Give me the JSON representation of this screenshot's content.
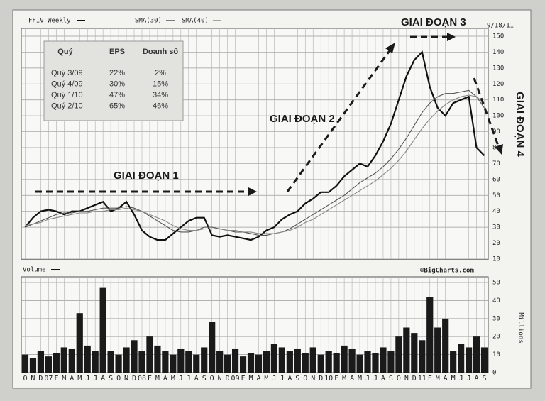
{
  "chart_data": [
    {
      "type": "line",
      "date_label": "9/18/11",
      "ylim": [
        10,
        150
      ],
      "yticks": [
        10,
        20,
        30,
        40,
        50,
        60,
        70,
        80,
        90,
        100,
        110,
        120,
        130,
        140,
        150
      ],
      "grid": true,
      "series": [
        {
          "name": "FFIV Weekly",
          "color": "#111111",
          "values": [
            30,
            36,
            40,
            41,
            40,
            38,
            40,
            40,
            42,
            44,
            46,
            40,
            42,
            46,
            38,
            28,
            24,
            22,
            22,
            26,
            30,
            34,
            36,
            36,
            25,
            24,
            25,
            24,
            23,
            22,
            24,
            28,
            30,
            35,
            38,
            40,
            45,
            48,
            52,
            52,
            56,
            62,
            66,
            70,
            68,
            75,
            84,
            95,
            110,
            125,
            135,
            140,
            118,
            105,
            100,
            108,
            110,
            112,
            80,
            75
          ]
        },
        {
          "name": "SMA(30)",
          "color": "#555555",
          "values": [
            30,
            32,
            34,
            36,
            38,
            39,
            39,
            40,
            40,
            41,
            42,
            42,
            42,
            43,
            42,
            40,
            37,
            34,
            31,
            28,
            27,
            27,
            28,
            30,
            30,
            29,
            28,
            27,
            27,
            26,
            25,
            25,
            26,
            27,
            29,
            32,
            35,
            38,
            41,
            44,
            47,
            50,
            54,
            58,
            61,
            64,
            68,
            73,
            79,
            86,
            94,
            102,
            108,
            112,
            114,
            114,
            115,
            116,
            112,
            105
          ]
        },
        {
          "name": "SMA(40)",
          "color": "#888888",
          "values": [
            31,
            32,
            33,
            35,
            36,
            37,
            38,
            39,
            39,
            40,
            40,
            41,
            41,
            42,
            41,
            40,
            38,
            36,
            34,
            31,
            29,
            28,
            28,
            29,
            29,
            29,
            28,
            28,
            27,
            27,
            26,
            26,
            26,
            27,
            28,
            30,
            33,
            35,
            38,
            41,
            44,
            47,
            50,
            53,
            56,
            59,
            63,
            67,
            72,
            78,
            85,
            92,
            98,
            103,
            107,
            110,
            112,
            113,
            112,
            108
          ]
        }
      ],
      "annotations": [
        "GIAI ĐOẠN 1",
        "GIAI ĐOẠN 2",
        "GIAI ĐOẠN 3",
        "GIAI ĐOẠN 4"
      ]
    },
    {
      "type": "bar",
      "source": "©BigCharts.com",
      "y_label": "Millions",
      "categories": [
        "O",
        "N",
        "D",
        "07",
        "F",
        "M",
        "A",
        "M",
        "J",
        "J",
        "A",
        "S",
        "O",
        "N",
        "D",
        "08",
        "F",
        "M",
        "A",
        "M",
        "J",
        "J",
        "A",
        "S",
        "O",
        "N",
        "D",
        "09",
        "F",
        "M",
        "A",
        "M",
        "J",
        "J",
        "A",
        "S",
        "O",
        "N",
        "D",
        "10",
        "F",
        "M",
        "A",
        "M",
        "J",
        "J",
        "A",
        "S",
        "O",
        "N",
        "D",
        "11",
        "F",
        "M",
        "A",
        "M",
        "J",
        "J",
        "A",
        "S"
      ],
      "ylim": [
        0,
        50
      ],
      "yticks": [
        0,
        10,
        20,
        30,
        40,
        50
      ],
      "grid": true,
      "series": [
        {
          "name": "Volume",
          "color": "#1a1a1a",
          "values": [
            10,
            8,
            12,
            9,
            11,
            14,
            13,
            33,
            15,
            12,
            47,
            12,
            10,
            14,
            18,
            12,
            20,
            15,
            12,
            10,
            13,
            12,
            10,
            14,
            28,
            12,
            10,
            13,
            9,
            11,
            10,
            12,
            16,
            14,
            12,
            13,
            11,
            14,
            10,
            12,
            11,
            15,
            13,
            10,
            12,
            11,
            14,
            12,
            20,
            25,
            22,
            18,
            42,
            25,
            30,
            12,
            16,
            14,
            20,
            14
          ]
        }
      ]
    }
  ],
  "table": {
    "header": [
      "Quý",
      "EPS",
      "Doanh số"
    ],
    "rows": [
      [
        "Quý 3/09",
        "22%",
        "2%"
      ],
      [
        "Quý 4/09",
        "30%",
        "15%"
      ],
      [
        "Quý 1/10",
        "47%",
        "34%"
      ],
      [
        "Quý 2/10",
        "65%",
        "46%"
      ]
    ]
  }
}
